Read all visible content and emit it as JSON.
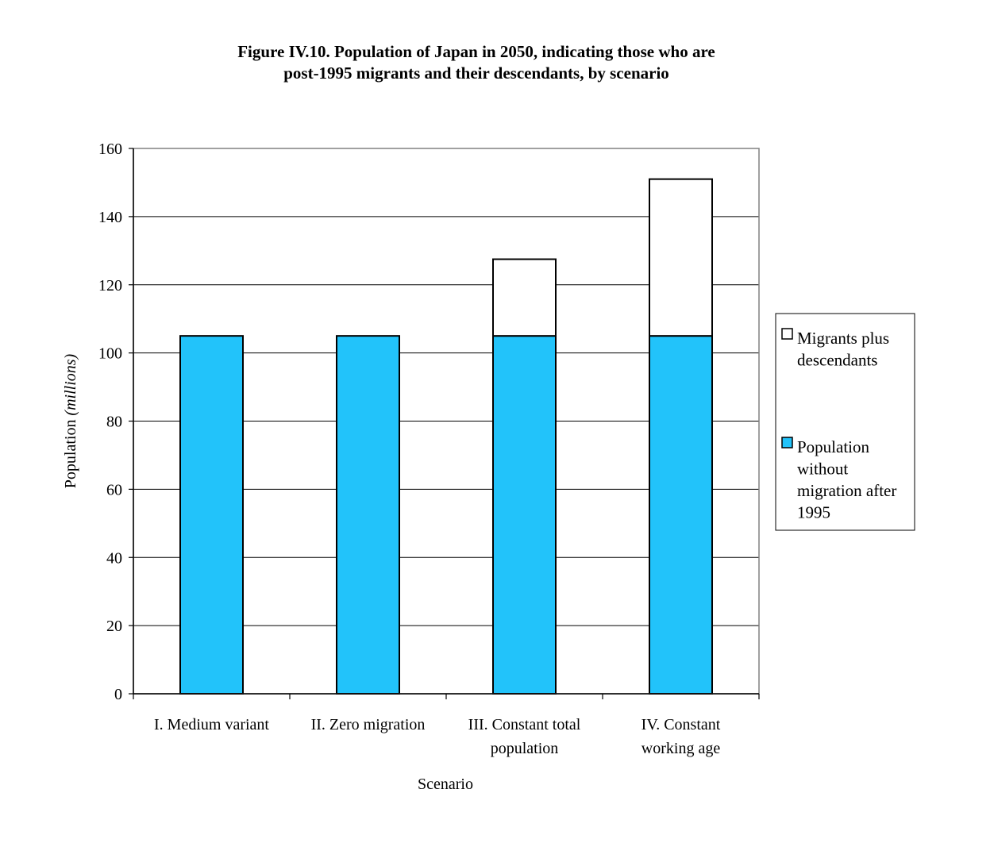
{
  "title_lines": [
    "Figure IV.10.  Population of Japan in 2050, indicating those who are",
    "post-1995 migrants and their descendants, by scenario"
  ],
  "chart_data": {
    "type": "bar",
    "stacked": true,
    "title": "Figure IV.10.  Population of Japan in 2050, indicating those who are post-1995 migrants and their descendants, by scenario",
    "categories": [
      [
        "I. Medium variant"
      ],
      [
        "II. Zero migration"
      ],
      [
        "III. Constant total",
        "population"
      ],
      [
        "IV. Constant",
        "working age"
      ]
    ],
    "series": [
      {
        "name_lines": [
          "Population",
          "without",
          "migration after",
          "1995"
        ],
        "color": "#22c3fa",
        "values": [
          105,
          105,
          105,
          105
        ]
      },
      {
        "name_lines": [
          "Migrants plus",
          "descendants"
        ],
        "color": "#ffffff",
        "values": [
          0,
          0,
          22.5,
          46
        ]
      }
    ],
    "xlabel": "Scenario",
    "ylabel": "Population",
    "ylabel_italic": "(millions)",
    "ylim": [
      0,
      160
    ],
    "yticks": [
      0,
      20,
      40,
      60,
      80,
      100,
      120,
      140,
      160
    ],
    "grid": true,
    "legend_position": "right"
  }
}
